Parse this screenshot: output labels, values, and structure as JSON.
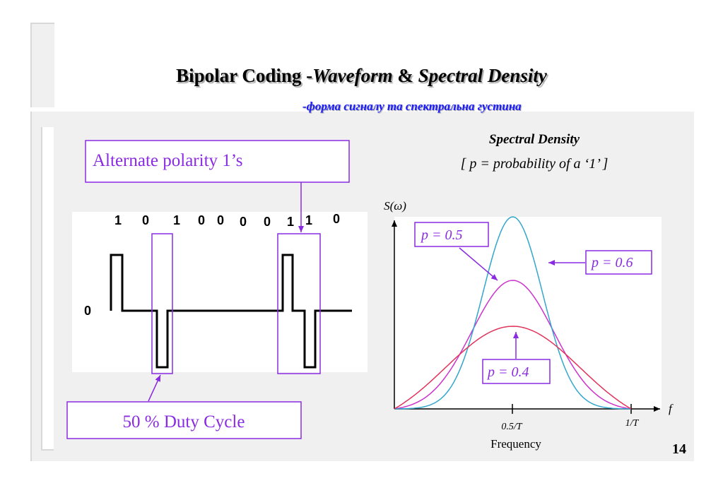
{
  "title": {
    "prefix": "Bipolar Coding -",
    "part1": "Waveform",
    "amp": " & ",
    "part2": "Spectral Density"
  },
  "subtitle": "-форма сигналу та спектральна густина",
  "page_number": "14",
  "waveform": {
    "callout_top": "Alternate polarity 1’s",
    "callout_bottom": "50 % Duty Cycle",
    "bits": [
      "1",
      "0",
      "1",
      "0",
      "0",
      "0",
      "0",
      "1",
      "1",
      "0"
    ],
    "zero_label": "0"
  },
  "spectrum": {
    "heading": "Spectral Density",
    "subheading": "[ p = probability of a ‘1’ ]",
    "y_label": "S(ω)",
    "x_label": "f",
    "x_caption": "Frequency",
    "tick_labels": [
      "0.5/T",
      "1/T"
    ],
    "curves": [
      {
        "label": "p = 0.5",
        "color": "#cc33cc"
      },
      {
        "label": "p = 0.6",
        "color": "#33a6cc"
      },
      {
        "label": "p = 0.4",
        "color": "#e0335a"
      }
    ]
  },
  "colors": {
    "accent": "#8a2be2",
    "subtitle": "#1a1aff"
  }
}
